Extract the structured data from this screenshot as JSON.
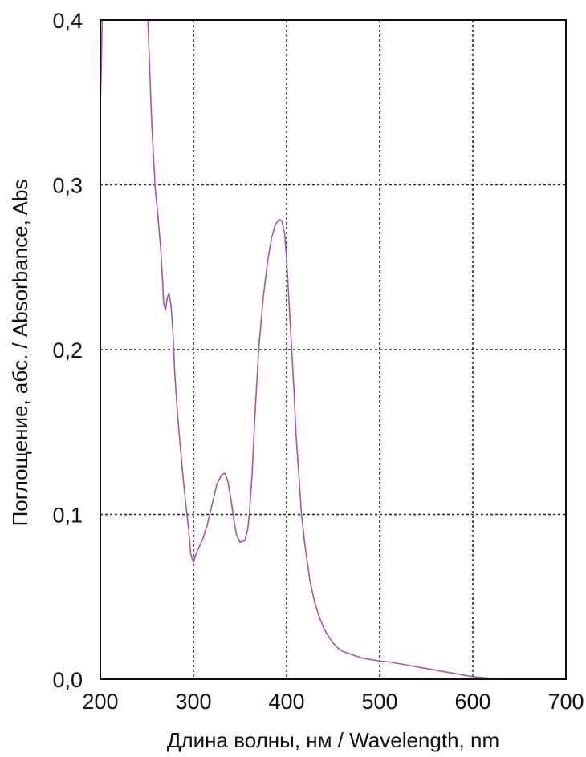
{
  "chart_data": {
    "type": "line",
    "title": "",
    "xlabel": "Длина волны, нм / Wavelength, nm",
    "ylabel": "Поглощение, абс. / Absorbance, Abs",
    "xlim": [
      200,
      700
    ],
    "ylim": [
      0,
      0.4
    ],
    "x_ticks": [
      200,
      300,
      400,
      500,
      600,
      700
    ],
    "x_tick_labels": [
      "200",
      "300",
      "400",
      "500",
      "600",
      "700"
    ],
    "y_ticks": [
      0,
      0.1,
      0.2,
      0.3,
      0.4
    ],
    "y_tick_labels": [
      "0,0",
      "0,1",
      "0,2",
      "0,3",
      "0,4"
    ],
    "grid": true,
    "legend": "none",
    "series": [
      {
        "color": "#a855a8",
        "x": [
          200,
          201,
          201.5,
          202,
          251,
          253,
          255,
          257,
          259,
          262,
          265,
          267,
          268,
          270,
          272,
          274,
          276,
          278,
          280,
          283,
          286,
          289,
          292,
          295,
          297,
          300,
          302,
          305,
          310,
          315,
          320,
          325,
          330,
          334,
          337,
          340,
          343,
          346,
          350,
          355,
          358,
          360,
          363,
          366,
          370,
          375,
          380,
          384,
          388,
          392,
          395,
          398,
          400,
          402,
          405,
          408,
          410,
          413,
          416,
          420,
          425,
          430,
          435,
          440,
          445,
          450,
          455,
          460,
          465,
          470,
          475,
          480,
          490,
          500,
          510,
          520,
          530,
          540,
          550,
          560,
          570,
          580,
          590,
          600,
          610,
          620,
          630
        ],
        "y": [
          0.348,
          0.372,
          0.385,
          0.4,
          0.4,
          0.37,
          0.34,
          0.318,
          0.298,
          0.28,
          0.26,
          0.24,
          0.228,
          0.224,
          0.232,
          0.234,
          0.226,
          0.21,
          0.185,
          0.16,
          0.14,
          0.122,
          0.105,
          0.09,
          0.076,
          0.071,
          0.075,
          0.079,
          0.085,
          0.094,
          0.106,
          0.118,
          0.124,
          0.125,
          0.12,
          0.11,
          0.098,
          0.088,
          0.083,
          0.084,
          0.09,
          0.1,
          0.125,
          0.16,
          0.2,
          0.232,
          0.255,
          0.268,
          0.276,
          0.279,
          0.278,
          0.27,
          0.255,
          0.235,
          0.205,
          0.175,
          0.15,
          0.125,
          0.1,
          0.08,
          0.06,
          0.047,
          0.038,
          0.031,
          0.026,
          0.022,
          0.019,
          0.017,
          0.016,
          0.015,
          0.014,
          0.013,
          0.012,
          0.011,
          0.0105,
          0.0095,
          0.0085,
          0.0075,
          0.0065,
          0.0055,
          0.0045,
          0.0035,
          0.0025,
          0.0015,
          0.001,
          0.0005,
          0.0
        ]
      }
    ]
  }
}
